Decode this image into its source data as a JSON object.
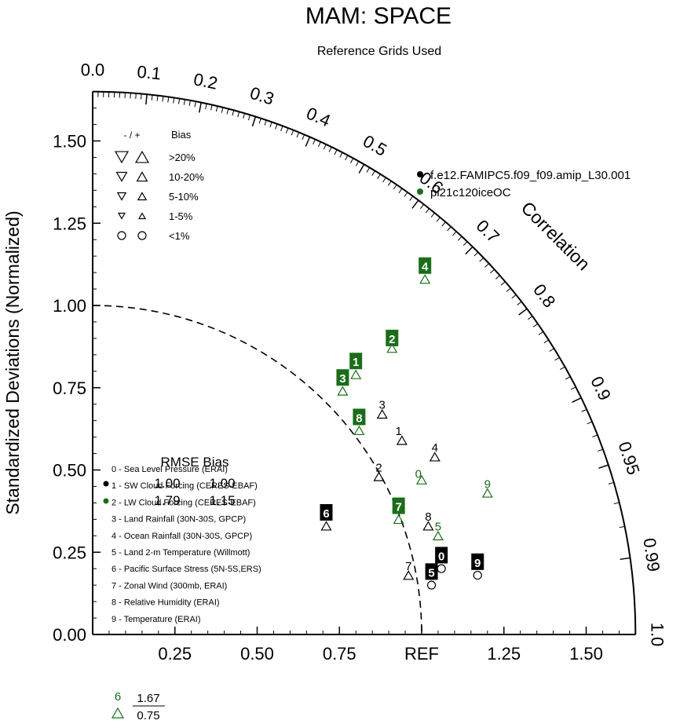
{
  "chart_data": {
    "type": "scatter",
    "subtype": "taylor-diagram",
    "title": "MAM: SPACE",
    "subtitle": "Reference Grids Used",
    "ylabel": "Standardized Deviations (Normalized)",
    "corr_label": "Correlation",
    "ref_label": "REF",
    "std_max": 1.65,
    "y_ticks": [
      "0.00",
      "0.25",
      "0.50",
      "0.75",
      "1.00",
      "1.25",
      "1.50"
    ],
    "y_tick_values": [
      0,
      0.25,
      0.5,
      0.75,
      1.0,
      1.25,
      1.5
    ],
    "x_ticks": [
      {
        "value": 0.25,
        "label": "0.25"
      },
      {
        "value": 0.5,
        "label": "0.50"
      },
      {
        "value": 0.75,
        "label": "0.75"
      },
      {
        "value": 1.25,
        "label": "1.25"
      },
      {
        "value": 1.5,
        "label": "1.50"
      }
    ],
    "corr_ticks": [
      {
        "value": 0.0,
        "label": "0.0"
      },
      {
        "value": 0.1,
        "label": "0.1"
      },
      {
        "value": 0.2,
        "label": "0.2"
      },
      {
        "value": 0.3,
        "label": "0.3"
      },
      {
        "value": 0.4,
        "label": "0.4"
      },
      {
        "value": 0.5,
        "label": "0.5"
      },
      {
        "value": 0.6,
        "label": "0.6"
      },
      {
        "value": 0.7,
        "label": "0.7"
      },
      {
        "value": 0.8,
        "label": "0.8"
      },
      {
        "value": 0.9,
        "label": "0.9"
      },
      {
        "value": 0.95,
        "label": "0.95"
      },
      {
        "value": 0.99,
        "label": "0.99"
      },
      {
        "value": 1.0,
        "label": "1.0"
      }
    ],
    "bias_legend": {
      "header_symbols": "- / +",
      "header_label": "Bias",
      "rows": [
        {
          "label": ">20%",
          "kind": "tri",
          "scale": 1.0
        },
        {
          "label": "10-20%",
          "kind": "tri",
          "scale": 0.8
        },
        {
          "label": "5-10%",
          "kind": "tri",
          "scale": 0.65
        },
        {
          "label": "1-5%",
          "kind": "tri",
          "scale": 0.5
        },
        {
          "label": "<1%",
          "kind": "circle",
          "scale": 1.0
        }
      ]
    },
    "series": [
      {
        "name": "f.e12.FAMIPC5.f09_f09.amip_L30.001",
        "color": "#000000",
        "box_text_color": "#ffffff",
        "points": [
          {
            "id": "0",
            "x": 1.06,
            "y": 0.2,
            "marker": "circle",
            "label": "0",
            "label_style": "box",
            "label_x": 1.06,
            "label_y": 0.24
          },
          {
            "id": "1",
            "x": 0.94,
            "y": 0.59,
            "marker": "tri-up",
            "label": "1",
            "label_style": "plain",
            "label_x": 0.93,
            "label_y": 0.62
          },
          {
            "id": "2",
            "x": 0.87,
            "y": 0.48,
            "marker": "tri-up",
            "label": "2",
            "label_style": "plain",
            "label_x": 0.87,
            "label_y": 0.51
          },
          {
            "id": "3",
            "x": 0.88,
            "y": 0.67,
            "marker": "tri-up",
            "label": "3",
            "label_style": "plain",
            "label_x": 0.88,
            "label_y": 0.7
          },
          {
            "id": "4",
            "x": 1.04,
            "y": 0.54,
            "marker": "tri-up",
            "label": "4",
            "label_style": "plain",
            "label_x": 1.04,
            "label_y": 0.57
          },
          {
            "id": "5",
            "x": 1.03,
            "y": 0.15,
            "marker": "circle",
            "label": "5",
            "label_style": "box",
            "label_x": 1.03,
            "label_y": 0.19
          },
          {
            "id": "6",
            "x": 0.71,
            "y": 0.33,
            "marker": "tri-up",
            "label": "6",
            "label_style": "box",
            "label_x": 0.71,
            "label_y": 0.37
          },
          {
            "id": "7",
            "x": 0.96,
            "y": 0.18,
            "marker": "tri-up",
            "label": "7",
            "label_style": "plain",
            "label_x": 0.96,
            "label_y": 0.21
          },
          {
            "id": "8",
            "x": 1.02,
            "y": 0.33,
            "marker": "tri-up",
            "label": "8",
            "label_style": "plain",
            "label_x": 1.02,
            "label_y": 0.36
          },
          {
            "id": "9",
            "x": 1.17,
            "y": 0.18,
            "marker": "circle",
            "label": "9",
            "label_style": "box",
            "label_x": 1.17,
            "label_y": 0.22
          }
        ]
      },
      {
        "name": "pi21c120iceOC",
        "color": "#1a6e1a",
        "box_text_color": "#ffffff",
        "points": [
          {
            "id": "0",
            "x": 1.0,
            "y": 0.47,
            "marker": "tri-up",
            "label": "0",
            "label_style": "plain",
            "label_x": 0.99,
            "label_y": 0.49
          },
          {
            "id": "1",
            "x": 0.8,
            "y": 0.79,
            "marker": "tri-up",
            "label": "1",
            "label_style": "box",
            "label_x": 0.8,
            "label_y": 0.83
          },
          {
            "id": "2",
            "x": 0.91,
            "y": 0.87,
            "marker": "tri-up",
            "label": "2",
            "label_style": "box",
            "label_x": 0.91,
            "label_y": 0.9
          },
          {
            "id": "3",
            "x": 0.76,
            "y": 0.74,
            "marker": "tri-up",
            "label": "3",
            "label_style": "box",
            "label_x": 0.76,
            "label_y": 0.78
          },
          {
            "id": "4",
            "x": 1.01,
            "y": 1.08,
            "marker": "tri-up",
            "label": "4",
            "label_style": "box",
            "label_x": 1.01,
            "label_y": 1.12
          },
          {
            "id": "5",
            "x": 1.05,
            "y": 0.3,
            "marker": "tri-up",
            "label": "5",
            "label_style": "plain",
            "label_x": 1.05,
            "label_y": 0.33
          },
          {
            "id": "6",
            "x": null,
            "y": null,
            "marker": "tri-up",
            "label": "6",
            "label_style": "offscale",
            "rmse": "1.67",
            "bias": "0.75"
          },
          {
            "id": "7",
            "x": 0.93,
            "y": 0.35,
            "marker": "tri-up",
            "label": "7",
            "label_style": "box",
            "label_x": 0.93,
            "label_y": 0.39
          },
          {
            "id": "8",
            "x": 0.81,
            "y": 0.62,
            "marker": "tri-up",
            "label": "8",
            "label_style": "box",
            "label_x": 0.81,
            "label_y": 0.66
          },
          {
            "id": "9",
            "x": 1.2,
            "y": 0.43,
            "marker": "tri-up",
            "label": "9",
            "label_style": "plain",
            "label_x": 1.2,
            "label_y": 0.46
          }
        ]
      }
    ],
    "variables": [
      "0 - Sea Level Pressure (ERAI)",
      "1 - SW Cloud Forcing (CERES-EBAF)",
      "2 - LW Cloud Forcing (CERES-EBAF)",
      "3 - Land Rainfall (30N-30S, GPCP)",
      "4 - Ocean Rainfall (30N-30S, GPCP)",
      "5 - Land 2-m Temperature (Willmott)",
      "6 - Pacific Surface Stress (5N-5S,ERS)",
      "7 - Zonal Wind (300mb, ERAI)",
      "8 - Relative Humidity (ERAI)",
      "9 - Temperature (ERAI)"
    ],
    "rmse_bias": {
      "header": "RMSE  Bias",
      "rows": [
        {
          "rmse": "1.00",
          "bias": "1.00"
        },
        {
          "rmse": "1.79",
          "bias": "1.15"
        }
      ]
    },
    "offscale_note": {
      "label": "6",
      "rmse": "1.67",
      "bias": "0.75"
    },
    "rmse_circle_radius": 1.0
  }
}
